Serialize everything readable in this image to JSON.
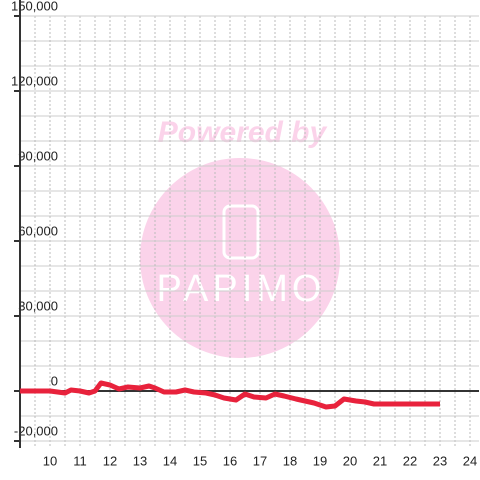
{
  "chart_data": {
    "type": "line",
    "x": [
      9,
      10,
      10.5,
      10.7,
      11,
      11.3,
      11.5,
      11.7,
      12,
      12.3,
      12.6,
      13,
      13.3,
      13.5,
      13.8,
      14.2,
      14.5,
      14.8,
      15.2,
      15.5,
      15.8,
      16.2,
      16.5,
      16.8,
      17.2,
      17.5,
      17.8,
      18.2,
      18.5,
      18.8,
      19.2,
      19.5,
      19.8,
      20.2,
      20.5,
      20.8,
      21.5,
      22,
      23
    ],
    "values": [
      0,
      0,
      -800,
      400,
      0,
      -800,
      0,
      3200,
      2400,
      800,
      1600,
      1200,
      2000,
      1200,
      -400,
      -400,
      400,
      -400,
      -800,
      -1600,
      -2800,
      -3600,
      -1200,
      -2400,
      -2800,
      -1200,
      -2000,
      -3200,
      -4000,
      -4800,
      -6400,
      -6000,
      -3200,
      -4000,
      -4400,
      -5200,
      -5200,
      -5200,
      -5200
    ],
    "color": "#e8223c",
    "xlim": [
      9,
      24.3
    ],
    "xticks": [
      10,
      11,
      12,
      13,
      14,
      15,
      16,
      17,
      18,
      19,
      20,
      21,
      22,
      23,
      24
    ],
    "xminor": [
      9.5,
      10.5,
      11.5,
      12.5,
      13.5,
      14.5,
      15.5,
      16.5,
      17.5,
      18.5,
      19.5,
      20.5,
      21.5,
      22.5,
      23.5
    ],
    "ylim": [
      -20000,
      150000
    ],
    "yticks": [
      {
        "value": -20000,
        "label": "-20,000"
      },
      0,
      {
        "value": 30000,
        "label": "30,000"
      },
      {
        "value": 60000,
        "label": "60,000"
      },
      {
        "value": 90000,
        "label": "90,000"
      },
      {
        "value": 120000,
        "label": "120,000"
      },
      {
        "value": 150000,
        "label": "150,000"
      }
    ],
    "yminor": [
      -10000,
      10000,
      20000,
      40000,
      50000,
      70000,
      80000,
      100000,
      110000,
      130000,
      140000
    ],
    "grid": true
  },
  "watermark": {
    "text": "Powered by",
    "logo": "PAPIMO"
  }
}
